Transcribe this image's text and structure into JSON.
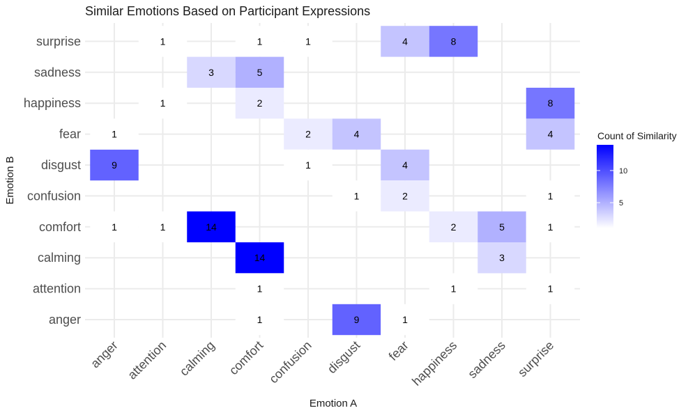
{
  "chart_data": {
    "type": "heatmap",
    "title": "Similar Emotions Based on Participant Expressions",
    "xlabel": "Emotion A",
    "ylabel": "Emotion B",
    "x_categories": [
      "anger",
      "attention",
      "calming",
      "comfort",
      "confusion",
      "disgust",
      "fear",
      "happiness",
      "sadness",
      "surprise"
    ],
    "y_categories": [
      "anger",
      "attention",
      "calming",
      "comfort",
      "confusion",
      "disgust",
      "fear",
      "happiness",
      "sadness",
      "surprise"
    ],
    "cells": [
      {
        "x": "anger",
        "y": "disgust",
        "value": 9
      },
      {
        "x": "anger",
        "y": "fear",
        "value": 1
      },
      {
        "x": "anger",
        "y": "comfort",
        "value": 1
      },
      {
        "x": "attention",
        "y": "surprise",
        "value": 1
      },
      {
        "x": "attention",
        "y": "happiness",
        "value": 1
      },
      {
        "x": "attention",
        "y": "comfort",
        "value": 1
      },
      {
        "x": "calming",
        "y": "sadness",
        "value": 3
      },
      {
        "x": "calming",
        "y": "comfort",
        "value": 14
      },
      {
        "x": "comfort",
        "y": "surprise",
        "value": 1
      },
      {
        "x": "comfort",
        "y": "sadness",
        "value": 5
      },
      {
        "x": "comfort",
        "y": "happiness",
        "value": 2
      },
      {
        "x": "comfort",
        "y": "calming",
        "value": 14
      },
      {
        "x": "comfort",
        "y": "attention",
        "value": 1
      },
      {
        "x": "comfort",
        "y": "anger",
        "value": 1
      },
      {
        "x": "confusion",
        "y": "surprise",
        "value": 1
      },
      {
        "x": "confusion",
        "y": "fear",
        "value": 2
      },
      {
        "x": "confusion",
        "y": "disgust",
        "value": 1
      },
      {
        "x": "disgust",
        "y": "fear",
        "value": 4
      },
      {
        "x": "disgust",
        "y": "confusion",
        "value": 1
      },
      {
        "x": "disgust",
        "y": "anger",
        "value": 9
      },
      {
        "x": "fear",
        "y": "surprise",
        "value": 4
      },
      {
        "x": "fear",
        "y": "disgust",
        "value": 4
      },
      {
        "x": "fear",
        "y": "confusion",
        "value": 2
      },
      {
        "x": "fear",
        "y": "anger",
        "value": 1
      },
      {
        "x": "happiness",
        "y": "surprise",
        "value": 8
      },
      {
        "x": "happiness",
        "y": "comfort",
        "value": 2
      },
      {
        "x": "happiness",
        "y": "attention",
        "value": 1
      },
      {
        "x": "sadness",
        "y": "comfort",
        "value": 5
      },
      {
        "x": "sadness",
        "y": "calming",
        "value": 3
      },
      {
        "x": "surprise",
        "y": "happiness",
        "value": 8
      },
      {
        "x": "surprise",
        "y": "fear",
        "value": 4
      },
      {
        "x": "surprise",
        "y": "confusion",
        "value": 1
      },
      {
        "x": "surprise",
        "y": "comfort",
        "value": 1
      },
      {
        "x": "surprise",
        "y": "attention",
        "value": 1
      }
    ],
    "color_scale": {
      "low": "#ffffff",
      "high": "#0000ff",
      "min": 1,
      "max": 14
    },
    "legend": {
      "title": "Count of Similarity",
      "ticks": [
        5,
        10
      ],
      "position": "right"
    },
    "grid": true
  }
}
